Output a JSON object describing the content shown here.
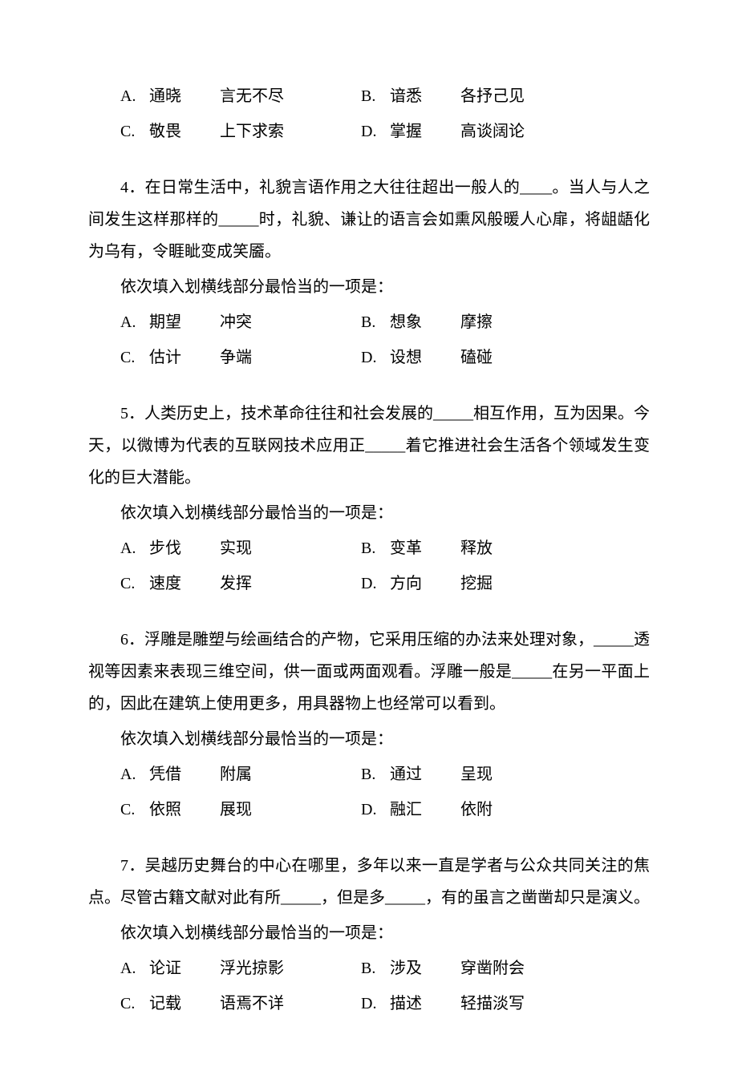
{
  "q3": {
    "A": {
      "label": "A.",
      "w1": "通晓",
      "w2": "言无不尽"
    },
    "B": {
      "label": "B.",
      "w1": "谙悉",
      "w2": "各抒己见"
    },
    "C": {
      "label": "C.",
      "w1": "敬畏",
      "w2": "上下求索"
    },
    "D": {
      "label": "D.",
      "w1": "掌握",
      "w2": "高谈阔论"
    }
  },
  "q4": {
    "text": "4．在日常生活中，礼貌言语作用之大往往超出一般人的____。当人与人之间发生这样那样的_____时，礼貌、谦让的语言会如熏风般暖人心扉，将龃龉化为乌有，令睚眦变成笑靥。",
    "sub": "依次填入划横线部分最恰当的一项是：",
    "A": {
      "label": "A.",
      "w1": "期望",
      "w2": "冲突"
    },
    "B": {
      "label": "B.",
      "w1": "想象",
      "w2": "摩擦"
    },
    "C": {
      "label": "C.",
      "w1": "估计",
      "w2": "争端"
    },
    "D": {
      "label": "D.",
      "w1": "设想",
      "w2": "磕碰"
    }
  },
  "q5": {
    "text": "5．人类历史上，技术革命往往和社会发展的_____相互作用，互为因果。今天，以微博为代表的互联网技术应用正_____着它推进社会生活各个领域发生变化的巨大潜能。",
    "sub": "依次填入划横线部分最恰当的一项是：",
    "A": {
      "label": "A.",
      "w1": "步伐",
      "w2": "实现"
    },
    "B": {
      "label": "B.",
      "w1": "变革",
      "w2": "释放"
    },
    "C": {
      "label": "C.",
      "w1": "速度",
      "w2": "发挥"
    },
    "D": {
      "label": "D.",
      "w1": "方向",
      "w2": "挖掘"
    }
  },
  "q6": {
    "text": "6．浮雕是雕塑与绘画结合的产物，它采用压缩的办法来处理对象，_____透视等因素来表现三维空间，供一面或两面观看。浮雕一般是_____在另一平面上的，因此在建筑上使用更多，用具器物上也经常可以看到。",
    "sub": "依次填入划横线部分最恰当的一项是：",
    "A": {
      "label": "A.",
      "w1": "凭借",
      "w2": "附属"
    },
    "B": {
      "label": "B.",
      "w1": "通过",
      "w2": "呈现"
    },
    "C": {
      "label": "C.",
      "w1": "依照",
      "w2": "展现"
    },
    "D": {
      "label": "D.",
      "w1": "融汇",
      "w2": "依附"
    }
  },
  "q7": {
    "text": "7．吴越历史舞台的中心在哪里，多年以来一直是学者与公众共同关注的焦点。尽管古籍文献对此有所_____，但是多_____，有的虽言之凿凿却只是演义。",
    "sub": "依次填入划横线部分最恰当的一项是：",
    "A": {
      "label": "A.",
      "w1": "论证",
      "w2": "浮光掠影"
    },
    "B": {
      "label": "B.",
      "w1": "涉及",
      "w2": "穿凿附会"
    },
    "C": {
      "label": "C.",
      "w1": "记载",
      "w2": "语焉不详"
    },
    "D": {
      "label": "D.",
      "w1": "描述",
      "w2": "轻描淡写"
    }
  }
}
